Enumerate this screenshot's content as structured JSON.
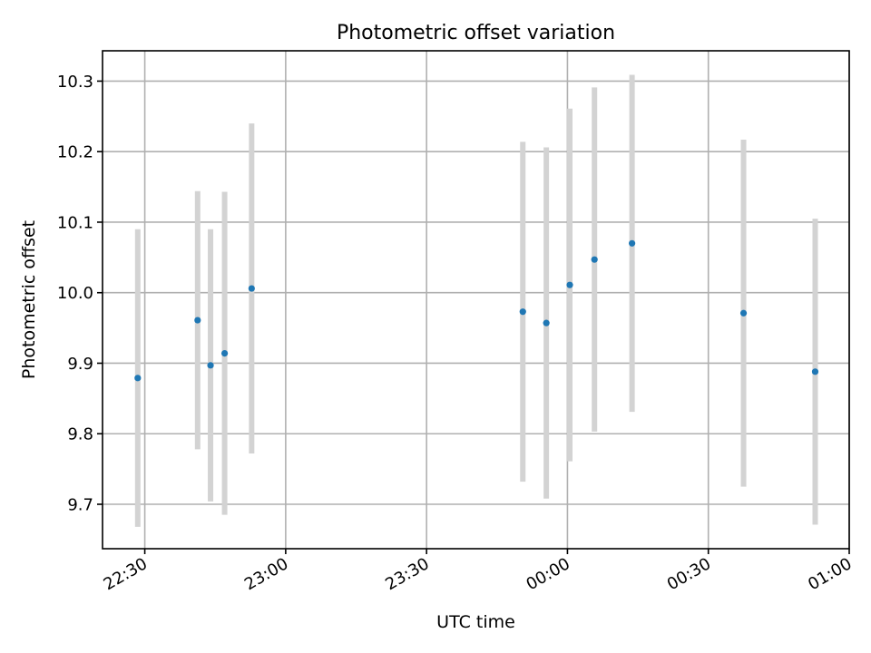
{
  "chart_data": {
    "type": "scatter",
    "title": "Photometric offset variation",
    "xlabel": "UTC time",
    "ylabel": "Photometric offset",
    "x_is_time": true,
    "x_min_time": "22:21",
    "x_max_time": "01:00",
    "ylim": [
      9.637,
      10.343
    ],
    "grid": true,
    "x_ticks": [
      {
        "time": "22:30",
        "label": "22:30"
      },
      {
        "time": "23:00",
        "label": "23:00"
      },
      {
        "time": "23:30",
        "label": "23:30"
      },
      {
        "time": "00:00",
        "label": "00:00"
      },
      {
        "time": "00:30",
        "label": "00:30"
      },
      {
        "time": "01:00",
        "label": "01:00"
      }
    ],
    "y_ticks": [
      {
        "value": 9.7,
        "label": "9.7"
      },
      {
        "value": 9.8,
        "label": "9.8"
      },
      {
        "value": 9.9,
        "label": "9.9"
      },
      {
        "value": 10.0,
        "label": "10.0"
      },
      {
        "value": 10.1,
        "label": "10.1"
      },
      {
        "value": 10.2,
        "label": "10.2"
      },
      {
        "value": 10.3,
        "label": "10.3"
      }
    ],
    "colors": {
      "point": "#1f77b4",
      "errorbar": "#d3d3d3"
    },
    "points": [
      {
        "time": "22:28:30",
        "y": 9.879,
        "yerr": 0.211
      },
      {
        "time": "22:41:15",
        "y": 9.961,
        "yerr": 0.183
      },
      {
        "time": "22:44:00",
        "y": 9.897,
        "yerr": 0.193
      },
      {
        "time": "22:47:00",
        "y": 9.914,
        "yerr": 0.229
      },
      {
        "time": "22:52:45",
        "y": 10.006,
        "yerr": 0.234
      },
      {
        "time": "23:50:30",
        "y": 9.973,
        "yerr": 0.241
      },
      {
        "time": "23:55:30",
        "y": 9.957,
        "yerr": 0.249
      },
      {
        "time": "00:00:30",
        "y": 10.011,
        "yerr": 0.25
      },
      {
        "time": "00:05:45",
        "y": 10.047,
        "yerr": 0.244
      },
      {
        "time": "00:13:45",
        "y": 10.07,
        "yerr": 0.239
      },
      {
        "time": "00:37:30",
        "y": 9.971,
        "yerr": 0.246
      },
      {
        "time": "00:52:45",
        "y": 9.888,
        "yerr": 0.217
      }
    ]
  }
}
